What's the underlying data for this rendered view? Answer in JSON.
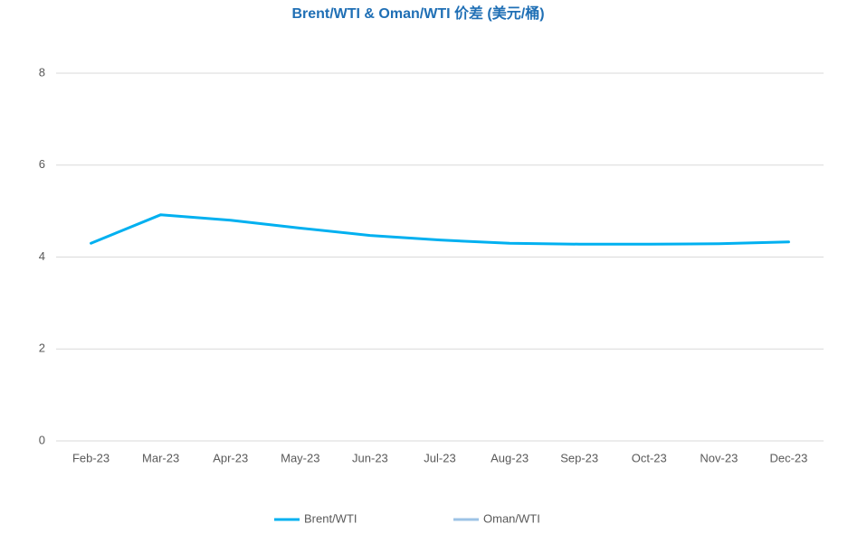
{
  "chart_data": {
    "type": "line",
    "title": "Brent/WTI & Oman/WTI 价差 (美元/桶)",
    "categories": [
      "Feb-23",
      "Mar-23",
      "Apr-23",
      "May-23",
      "Jun-23",
      "Jul-23",
      "Aug-23",
      "Sep-23",
      "Oct-23",
      "Nov-23",
      "Dec-23"
    ],
    "series": [
      {
        "name": "Brent/WTI",
        "color": "#00b0f0",
        "values": [
          4.3,
          4.92,
          4.8,
          4.63,
          4.47,
          4.37,
          4.3,
          4.28,
          4.28,
          4.29,
          4.33
        ]
      },
      {
        "name": "Oman/WTI",
        "color": "#9dc3e6",
        "values": [
          null,
          null,
          null,
          null,
          null,
          null,
          null,
          null,
          null,
          null,
          null
        ]
      }
    ],
    "ylim": [
      0,
      8
    ],
    "yticks": [
      0,
      2,
      4,
      6,
      8
    ],
    "grid": true,
    "legend": "bottom"
  }
}
